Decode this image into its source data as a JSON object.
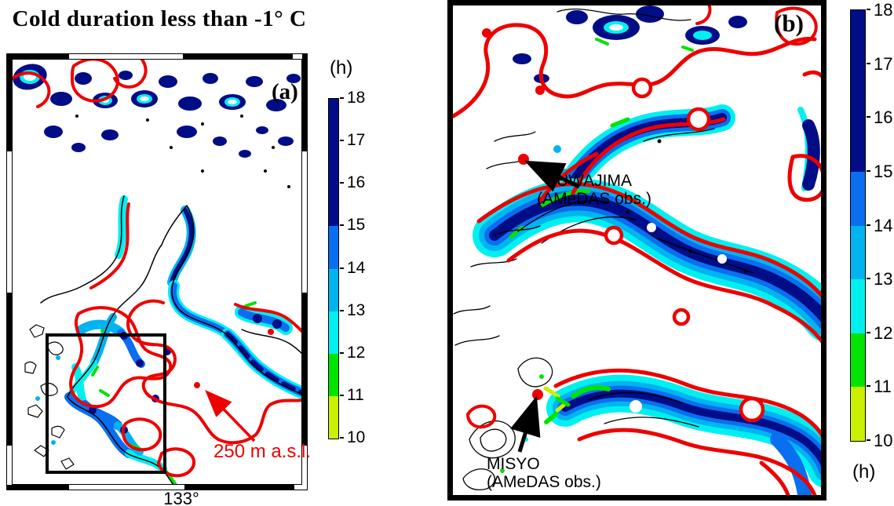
{
  "title": "Cold duration less than -1° C",
  "palette": {
    "navy": "#000d87",
    "blue": "#0a6ef0",
    "skyblue": "#00b4f0",
    "cyan": "#00f0f0",
    "green": "#00e400",
    "yellowgreen": "#c8f000",
    "red": "#ee0000",
    "ink": "#000000"
  },
  "colorbar": {
    "unit_label": "(h)",
    "ticks": [
      "18",
      "17",
      "16",
      "15",
      "14",
      "13",
      "12",
      "11",
      "10"
    ],
    "segments": [
      {
        "from": 15,
        "to": 18,
        "color": "#000d87"
      },
      {
        "from": 14,
        "to": 15,
        "color": "#0a6ef0"
      },
      {
        "from": 13,
        "to": 14,
        "color": "#00b4f0"
      },
      {
        "from": 12,
        "to": 13,
        "color": "#00f0f0"
      },
      {
        "from": 11,
        "to": 12,
        "color": "#00e400"
      },
      {
        "from": 10,
        "to": 11,
        "color": "#c8f000"
      }
    ]
  },
  "panel_a": {
    "label": "(a)",
    "x_axis_tick": "133°",
    "annotation": "250 m a.s.l."
  },
  "panel_b": {
    "label": "(b)",
    "stations": [
      {
        "name": "UWAJIMA",
        "detail": "(AMeDAS obs.)"
      },
      {
        "name": "MISYO",
        "detail": "(AMeDAS obs.)"
      }
    ]
  },
  "chart_data": {
    "type": "heatmap",
    "title": "Cold duration less than -1° C",
    "unit": "h",
    "scale_range": [
      10,
      18
    ],
    "scale_ticks": [
      18,
      17,
      16,
      15,
      14,
      13,
      12,
      11,
      10
    ],
    "panels": [
      {
        "label": "(a)",
        "x_tick": "133°",
        "annotation": "250 m a.s.l."
      },
      {
        "label": "(b)",
        "stations": [
          "UWAJIMA (AMeDAS obs.)",
          "MISYO (AMeDAS obs.)"
        ]
      }
    ]
  }
}
